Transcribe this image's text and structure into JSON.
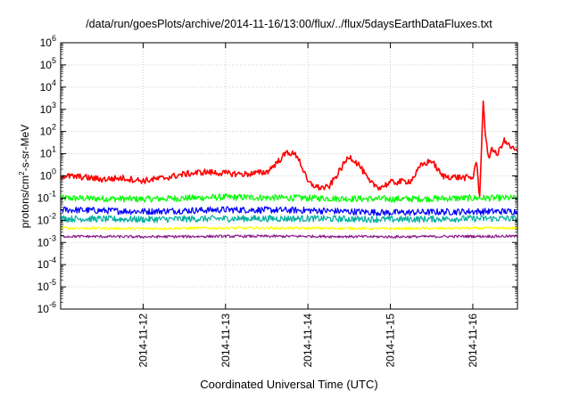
{
  "chart_data": {
    "type": "line",
    "title": "/data/run/goesPlots/archive/2014-11-16/13:00/flux/../flux/5daysEarthDataFluxes.txt",
    "xlabel": "Coordinated Universal Time (UTC)",
    "ylabel_parts": {
      "pre": "protons/cm",
      "sup": "2",
      "post": "-s-sr-MeV"
    },
    "x_ticks": [
      "2014-11-12",
      "2014-11-13",
      "2014-11-14",
      "2014-11-15",
      "2014-11-16"
    ],
    "xlim": [
      "2014-11-11 00:00",
      "2014-11-16 13:00"
    ],
    "y_scale": "log",
    "ylim": [
      1e-06,
      1000000.0
    ],
    "y_ticks": [
      {
        "base": "10",
        "exp": "-6"
      },
      {
        "base": "10",
        "exp": "-5"
      },
      {
        "base": "10",
        "exp": "-4"
      },
      {
        "base": "10",
        "exp": "-3"
      },
      {
        "base": "10",
        "exp": "-2"
      },
      {
        "base": "10",
        "exp": "-1"
      },
      {
        "base": "10",
        "exp": "0"
      },
      {
        "base": "10",
        "exp": "1"
      },
      {
        "base": "10",
        "exp": "2"
      },
      {
        "base": "10",
        "exp": "3"
      },
      {
        "base": "10",
        "exp": "4"
      },
      {
        "base": "10",
        "exp": "5"
      },
      {
        "base": "10",
        "exp": "6"
      }
    ],
    "grid": true,
    "series": [
      {
        "color": "#ff0000",
        "x": [
          "2014-11-11 00:00",
          "2014-11-11 06:00",
          "2014-11-11 12:00",
          "2014-11-11 18:00",
          "2014-11-12 00:00",
          "2014-11-12 06:00",
          "2014-11-12 12:00",
          "2014-11-12 18:00",
          "2014-11-13 00:00",
          "2014-11-13 06:00",
          "2014-11-13 12:00",
          "2014-11-13 15:00",
          "2014-11-13 18:00",
          "2014-11-13 21:00",
          "2014-11-14 00:00",
          "2014-11-14 03:00",
          "2014-11-14 06:00",
          "2014-11-14 09:00",
          "2014-11-14 12:00",
          "2014-11-14 15:00",
          "2014-11-14 18:00",
          "2014-11-14 21:00",
          "2014-11-15 00:00",
          "2014-11-15 06:00",
          "2014-11-15 09:00",
          "2014-11-15 12:00",
          "2014-11-15 15:00",
          "2014-11-15 18:00",
          "2014-11-16 00:00",
          "2014-11-16 01:00",
          "2014-11-16 02:00",
          "2014-11-16 03:00",
          "2014-11-16 03:30",
          "2014-11-16 04:30",
          "2014-11-16 05:30",
          "2014-11-16 07:00",
          "2014-11-16 09:00",
          "2014-11-16 11:00",
          "2014-11-16 13:00"
        ],
        "y": [
          1.0,
          0.9,
          0.7,
          0.8,
          0.6,
          0.8,
          1.2,
          1.5,
          1.3,
          1.2,
          1.5,
          4.0,
          12.0,
          8.0,
          0.5,
          0.3,
          0.3,
          1.5,
          8.0,
          3.0,
          0.5,
          0.3,
          0.5,
          0.6,
          3.0,
          5.0,
          1.0,
          0.9,
          0.8,
          5.0,
          0.1,
          2500,
          150,
          5,
          20,
          8,
          40,
          20,
          12
        ]
      },
      {
        "color": "#00ff00",
        "x": [
          "2014-11-11 00:00",
          "2014-11-12 00:00",
          "2014-11-13 00:00",
          "2014-11-14 00:00",
          "2014-11-15 00:00",
          "2014-11-16 00:00",
          "2014-11-16 13:00"
        ],
        "y": [
          0.1,
          0.09,
          0.11,
          0.1,
          0.09,
          0.1,
          0.1
        ]
      },
      {
        "color": "#0000ff",
        "x": [
          "2014-11-11 00:00",
          "2014-11-12 00:00",
          "2014-11-13 00:00",
          "2014-11-14 00:00",
          "2014-11-15 00:00",
          "2014-11-16 00:00",
          "2014-11-16 13:00"
        ],
        "y": [
          0.03,
          0.025,
          0.03,
          0.028,
          0.022,
          0.025,
          0.025
        ]
      },
      {
        "color": "#00b0a0",
        "x": [
          "2014-11-11 00:00",
          "2014-11-12 00:00",
          "2014-11-13 00:00",
          "2014-11-14 00:00",
          "2014-11-15 00:00",
          "2014-11-16 00:00",
          "2014-11-16 13:00"
        ],
        "y": [
          0.012,
          0.011,
          0.012,
          0.012,
          0.011,
          0.012,
          0.012
        ]
      },
      {
        "color": "#ffff00",
        "x": [
          "2014-11-11 00:00",
          "2014-11-12 00:00",
          "2014-11-13 00:00",
          "2014-11-14 00:00",
          "2014-11-15 00:00",
          "2014-11-16 00:00",
          "2014-11-16 13:00"
        ],
        "y": [
          0.0045,
          0.0042,
          0.0045,
          0.0044,
          0.0042,
          0.0044,
          0.0044
        ]
      },
      {
        "color": "#8b1a8b",
        "x": [
          "2014-11-11 00:00",
          "2014-11-12 00:00",
          "2014-11-13 00:00",
          "2014-11-14 00:00",
          "2014-11-15 00:00",
          "2014-11-16 00:00",
          "2014-11-16 13:00"
        ],
        "y": [
          0.0019,
          0.0018,
          0.0019,
          0.0019,
          0.0018,
          0.0019,
          0.0019
        ]
      }
    ]
  }
}
